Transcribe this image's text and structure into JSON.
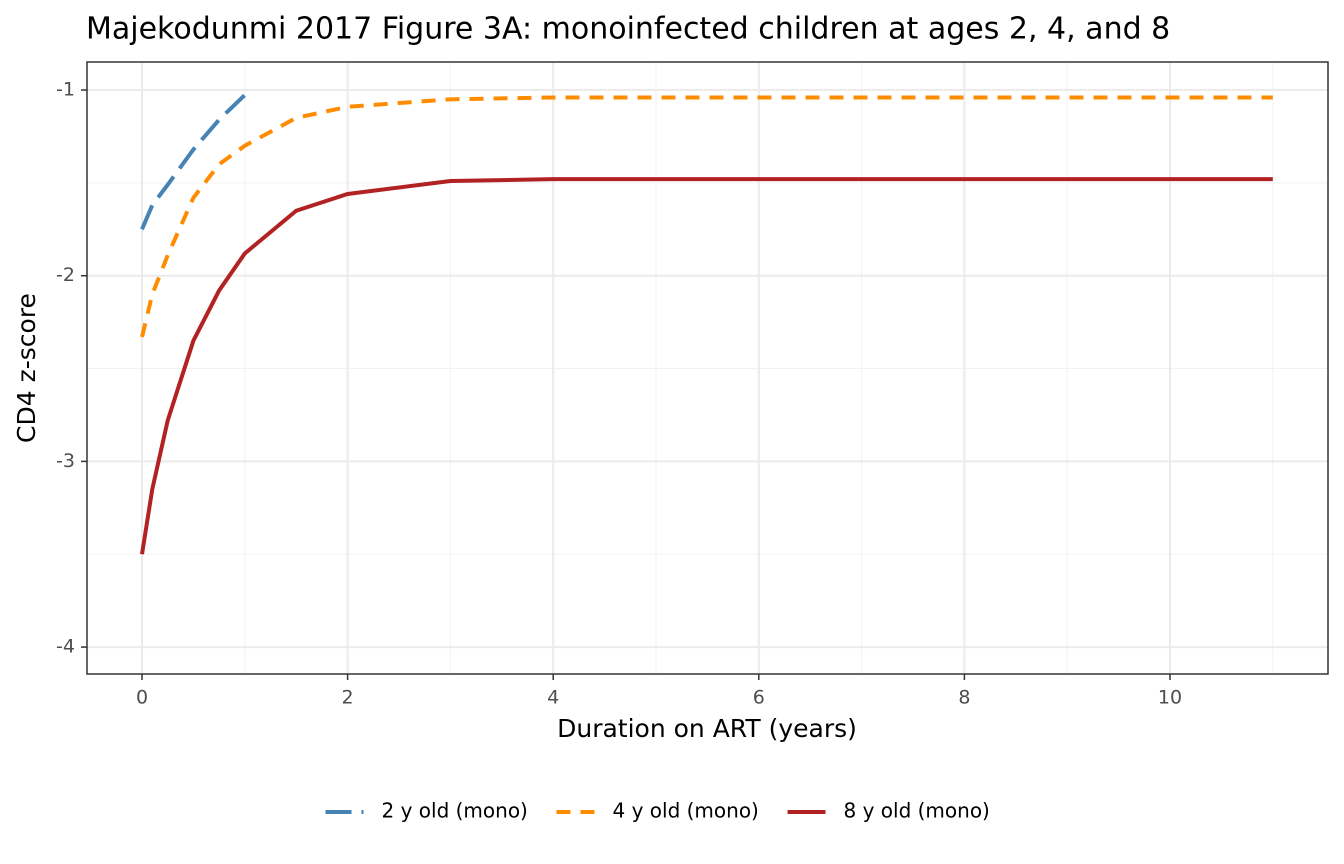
{
  "chart_data": {
    "type": "line",
    "title": "Majekodunmi 2017 Figure 3A: monoinfected children at ages 2, 4, and 8",
    "xlabel": "Duration on ART (years)",
    "ylabel": "CD4 z-score",
    "xlim": [
      -0.535,
      11.537
    ],
    "ylim": [
      -4.145,
      -0.849
    ],
    "xticks": [
      0,
      2,
      4,
      6,
      8,
      10
    ],
    "yticks": [
      -4,
      -3,
      -2,
      -1
    ],
    "grid": true,
    "legend": "bottom",
    "series": [
      {
        "name": "2 y old (mono)",
        "color": "#4682b4",
        "linetype": "longdash",
        "x": [
          0,
          0.1,
          0.25,
          0.5,
          0.75,
          1.05
        ],
        "values": [
          -1.75,
          -1.62,
          -1.51,
          -1.32,
          -1.16,
          -1.0
        ]
      },
      {
        "name": "4 y old (mono)",
        "color": "#ff8c00",
        "linetype": "dashed",
        "x": [
          0,
          0.1,
          0.25,
          0.5,
          0.75,
          1,
          1.5,
          2,
          3,
          4,
          6,
          8,
          11
        ],
        "values": [
          -2.33,
          -2.1,
          -1.89,
          -1.58,
          -1.4,
          -1.3,
          -1.15,
          -1.09,
          -1.05,
          -1.04,
          -1.04,
          -1.04,
          -1.04
        ]
      },
      {
        "name": "8 y old (mono)",
        "color": "#b22222",
        "linetype": "solid",
        "x": [
          0,
          0.1,
          0.25,
          0.5,
          0.75,
          1,
          1.5,
          2,
          3,
          4,
          6,
          8,
          11
        ],
        "values": [
          -3.5,
          -3.15,
          -2.78,
          -2.35,
          -2.08,
          -1.88,
          -1.65,
          -1.56,
          -1.49,
          -1.48,
          -1.48,
          -1.48,
          -1.48
        ]
      }
    ]
  }
}
